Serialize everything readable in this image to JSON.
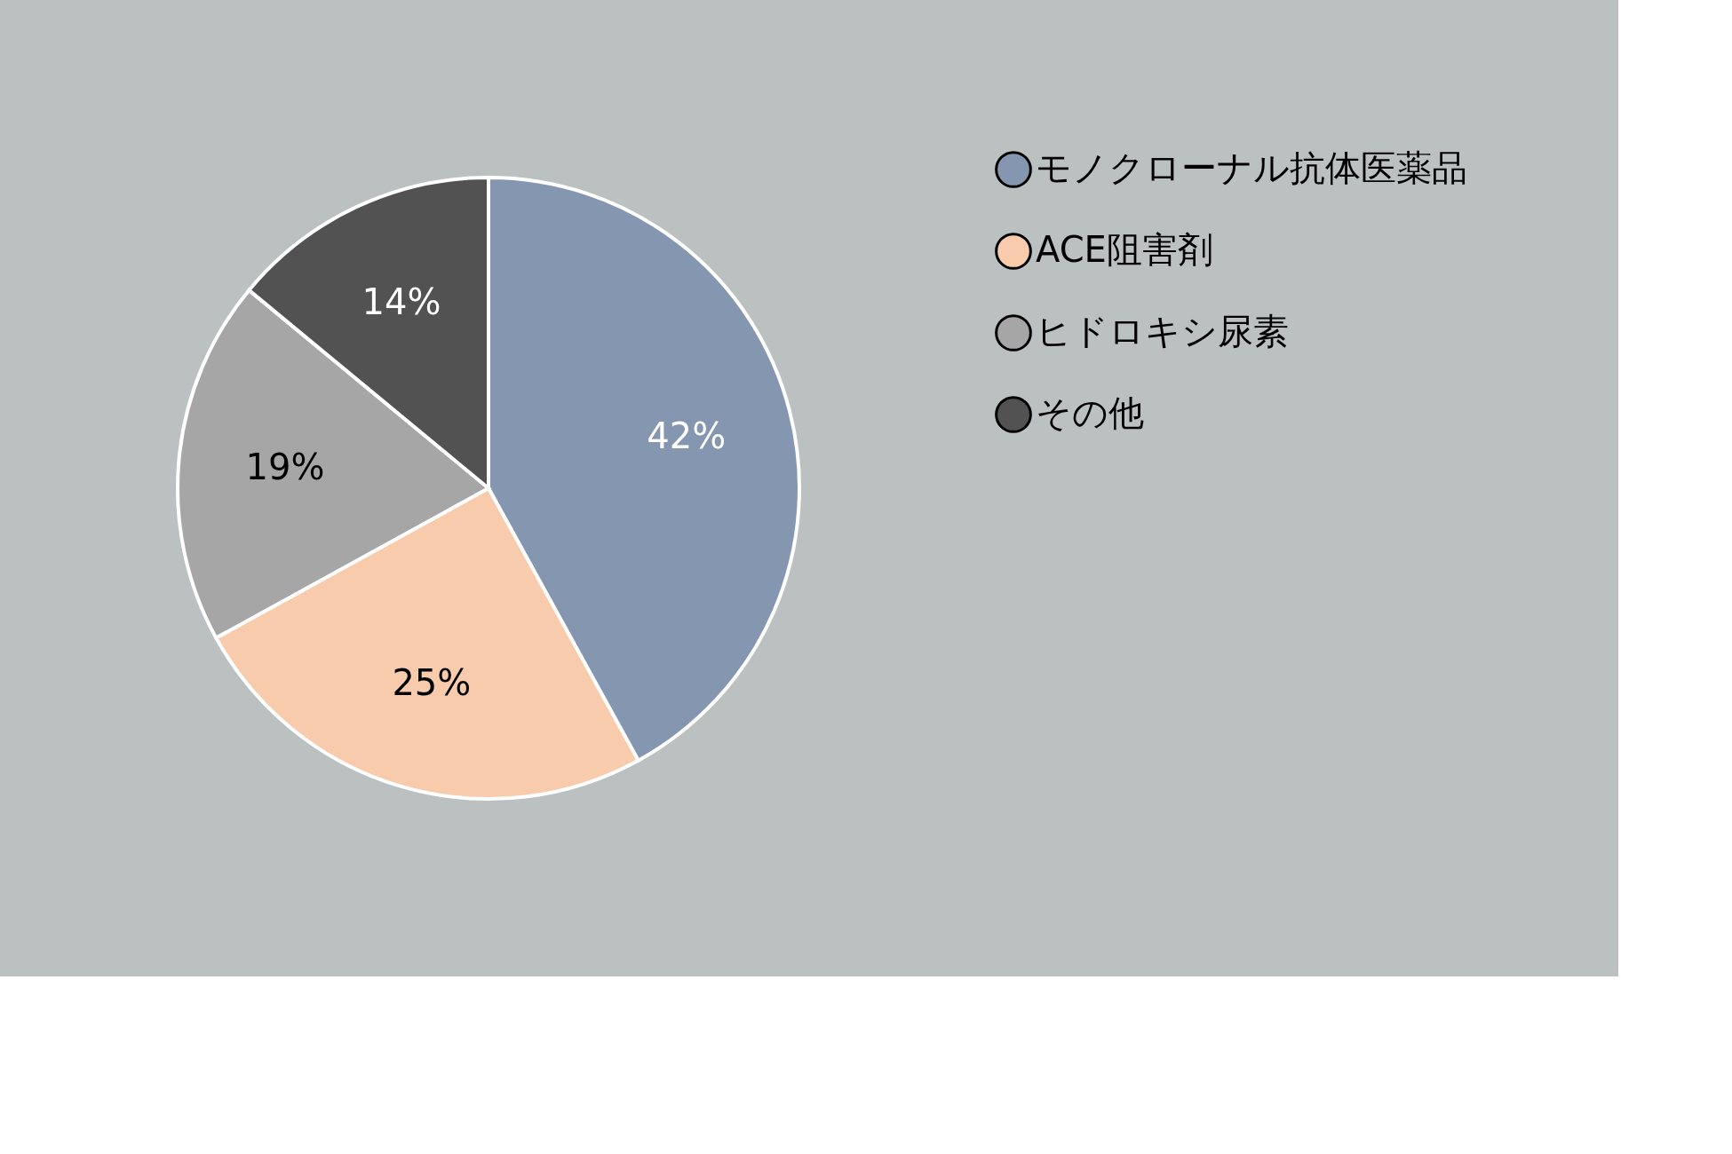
{
  "chart_data": {
    "type": "pie",
    "categories": [
      "モノクローナル抗体医薬品",
      "ACE阻害剤",
      "ヒドロキシ尿素",
      "その他"
    ],
    "values": [
      42,
      25,
      19,
      14
    ],
    "colors": [
      "#8496b0",
      "#f8cbad",
      "#a6a6a6",
      "#525252"
    ],
    "value_labels": [
      "42%",
      "25%",
      "19%",
      "14%"
    ],
    "legend": "right"
  }
}
